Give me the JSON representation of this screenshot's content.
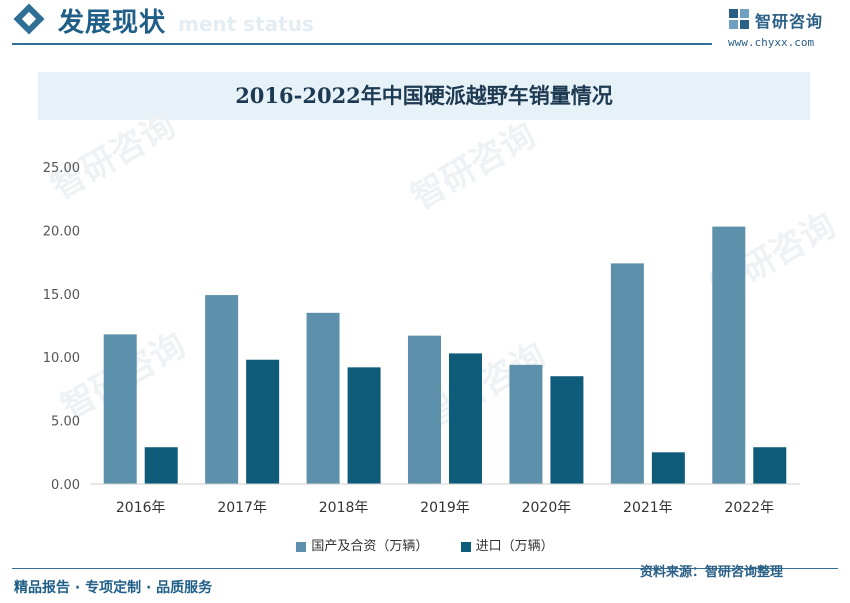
{
  "header": {
    "section_title": "发展现状",
    "section_subtitle": "ment status",
    "brand_name": "智研咨询",
    "brand_url": "www.chyxx.com"
  },
  "colors": {
    "domestic": "#5d90aa",
    "import": "#0e5c7a",
    "accent": "#2f6f95",
    "title_band": "#e7f1f8"
  },
  "chart_data": {
    "type": "bar",
    "title": "2016-2022年中国硬派越野车销量情况",
    "categories": [
      "2016年",
      "2017年",
      "2018年",
      "2019年",
      "2020年",
      "2021年",
      "2022年"
    ],
    "series": [
      {
        "name": "国产及合资（万辆）",
        "values": [
          11.8,
          14.9,
          13.5,
          11.7,
          9.4,
          17.4,
          20.3
        ]
      },
      {
        "name": "进口（万辆）",
        "values": [
          2.9,
          9.8,
          9.2,
          10.3,
          8.5,
          2.5,
          2.9
        ]
      }
    ],
    "yticks": [
      "0.00",
      "5.00",
      "10.00",
      "15.00",
      "20.00",
      "25.00"
    ],
    "ylim": [
      0,
      25
    ],
    "grid": false,
    "legend_position": "bottom"
  },
  "footer": {
    "left": "精品报告 · 专项定制 · 品质服务",
    "source": "资料来源：智研咨询整理"
  }
}
